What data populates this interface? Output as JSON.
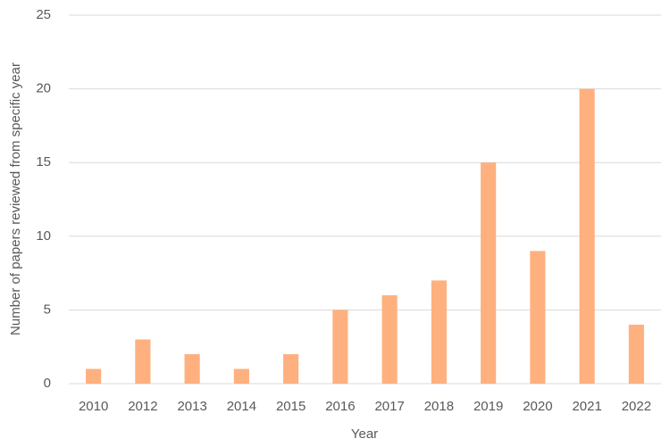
{
  "chart_data": {
    "type": "bar",
    "x_label": "Year",
    "y_label": "Number of papers reviewed from specific year",
    "categories": [
      "2010",
      "2012",
      "2013",
      "2014",
      "2015",
      "2016",
      "2017",
      "2018",
      "2019",
      "2020",
      "2021",
      "2022"
    ],
    "values": [
      1,
      3,
      2,
      1,
      2,
      5,
      6,
      7,
      15,
      9,
      20,
      4
    ],
    "color": "#ffb07f",
    "ylim": [
      0,
      25
    ],
    "yticks": [
      0,
      5,
      10,
      15,
      20,
      25
    ],
    "grid": true
  }
}
